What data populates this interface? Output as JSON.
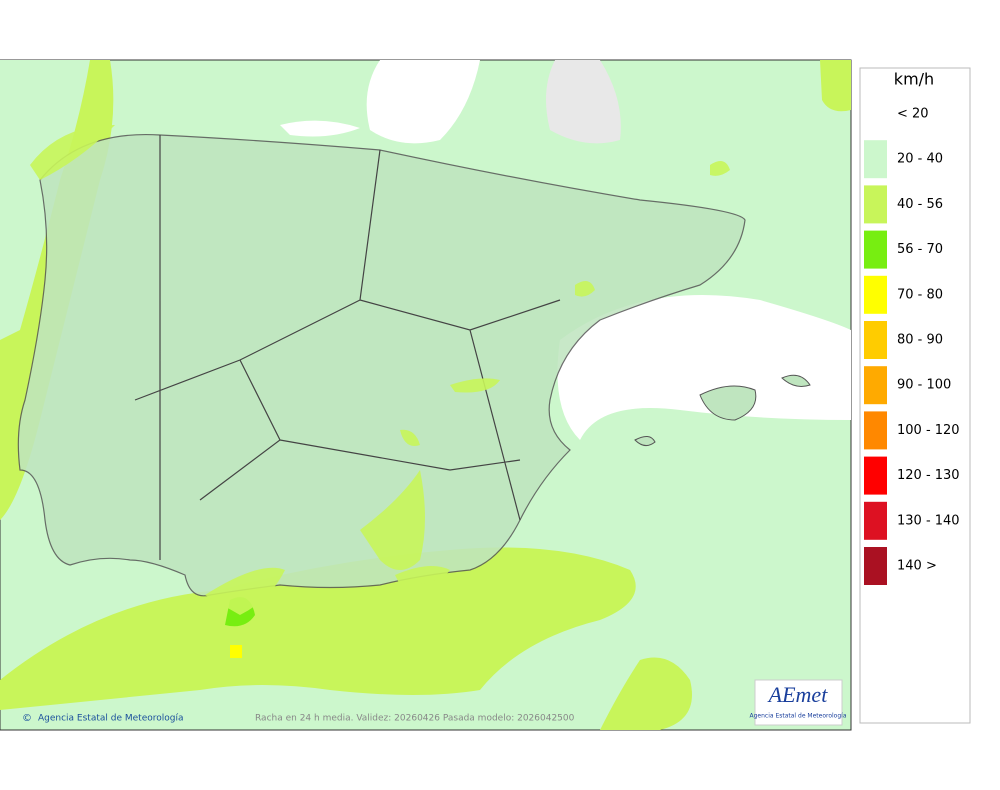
{
  "legend": {
    "title": "km/h",
    "items": [
      {
        "label": "< 20",
        "color": "#ffffff"
      },
      {
        "label": "20 - 40",
        "color": "#ccf7cc"
      },
      {
        "label": "40 - 56",
        "color": "#c8f55a"
      },
      {
        "label": "56 - 70",
        "color": "#77ee11"
      },
      {
        "label": "70 - 80",
        "color": "#ffff00"
      },
      {
        "label": "80 - 90",
        "color": "#ffcc00"
      },
      {
        "label": "90 - 100",
        "color": "#ffaa00"
      },
      {
        "label": "100 - 120",
        "color": "#ff8800"
      },
      {
        "label": "120 - 130",
        "color": "#ff0000"
      },
      {
        "label": "130 - 140",
        "color": "#dd1122"
      },
      {
        "label": "140 >",
        "color": "#aa1122"
      }
    ]
  },
  "map": {
    "credit": "Agencia Estatal de Meteorología",
    "caption": "Racha en 24 h media. Validez: 20260426 Pasada modelo: 2026042500"
  },
  "logo": {
    "text": "AEmet",
    "subtitle": "Agencia Estatal de Meteorología"
  }
}
